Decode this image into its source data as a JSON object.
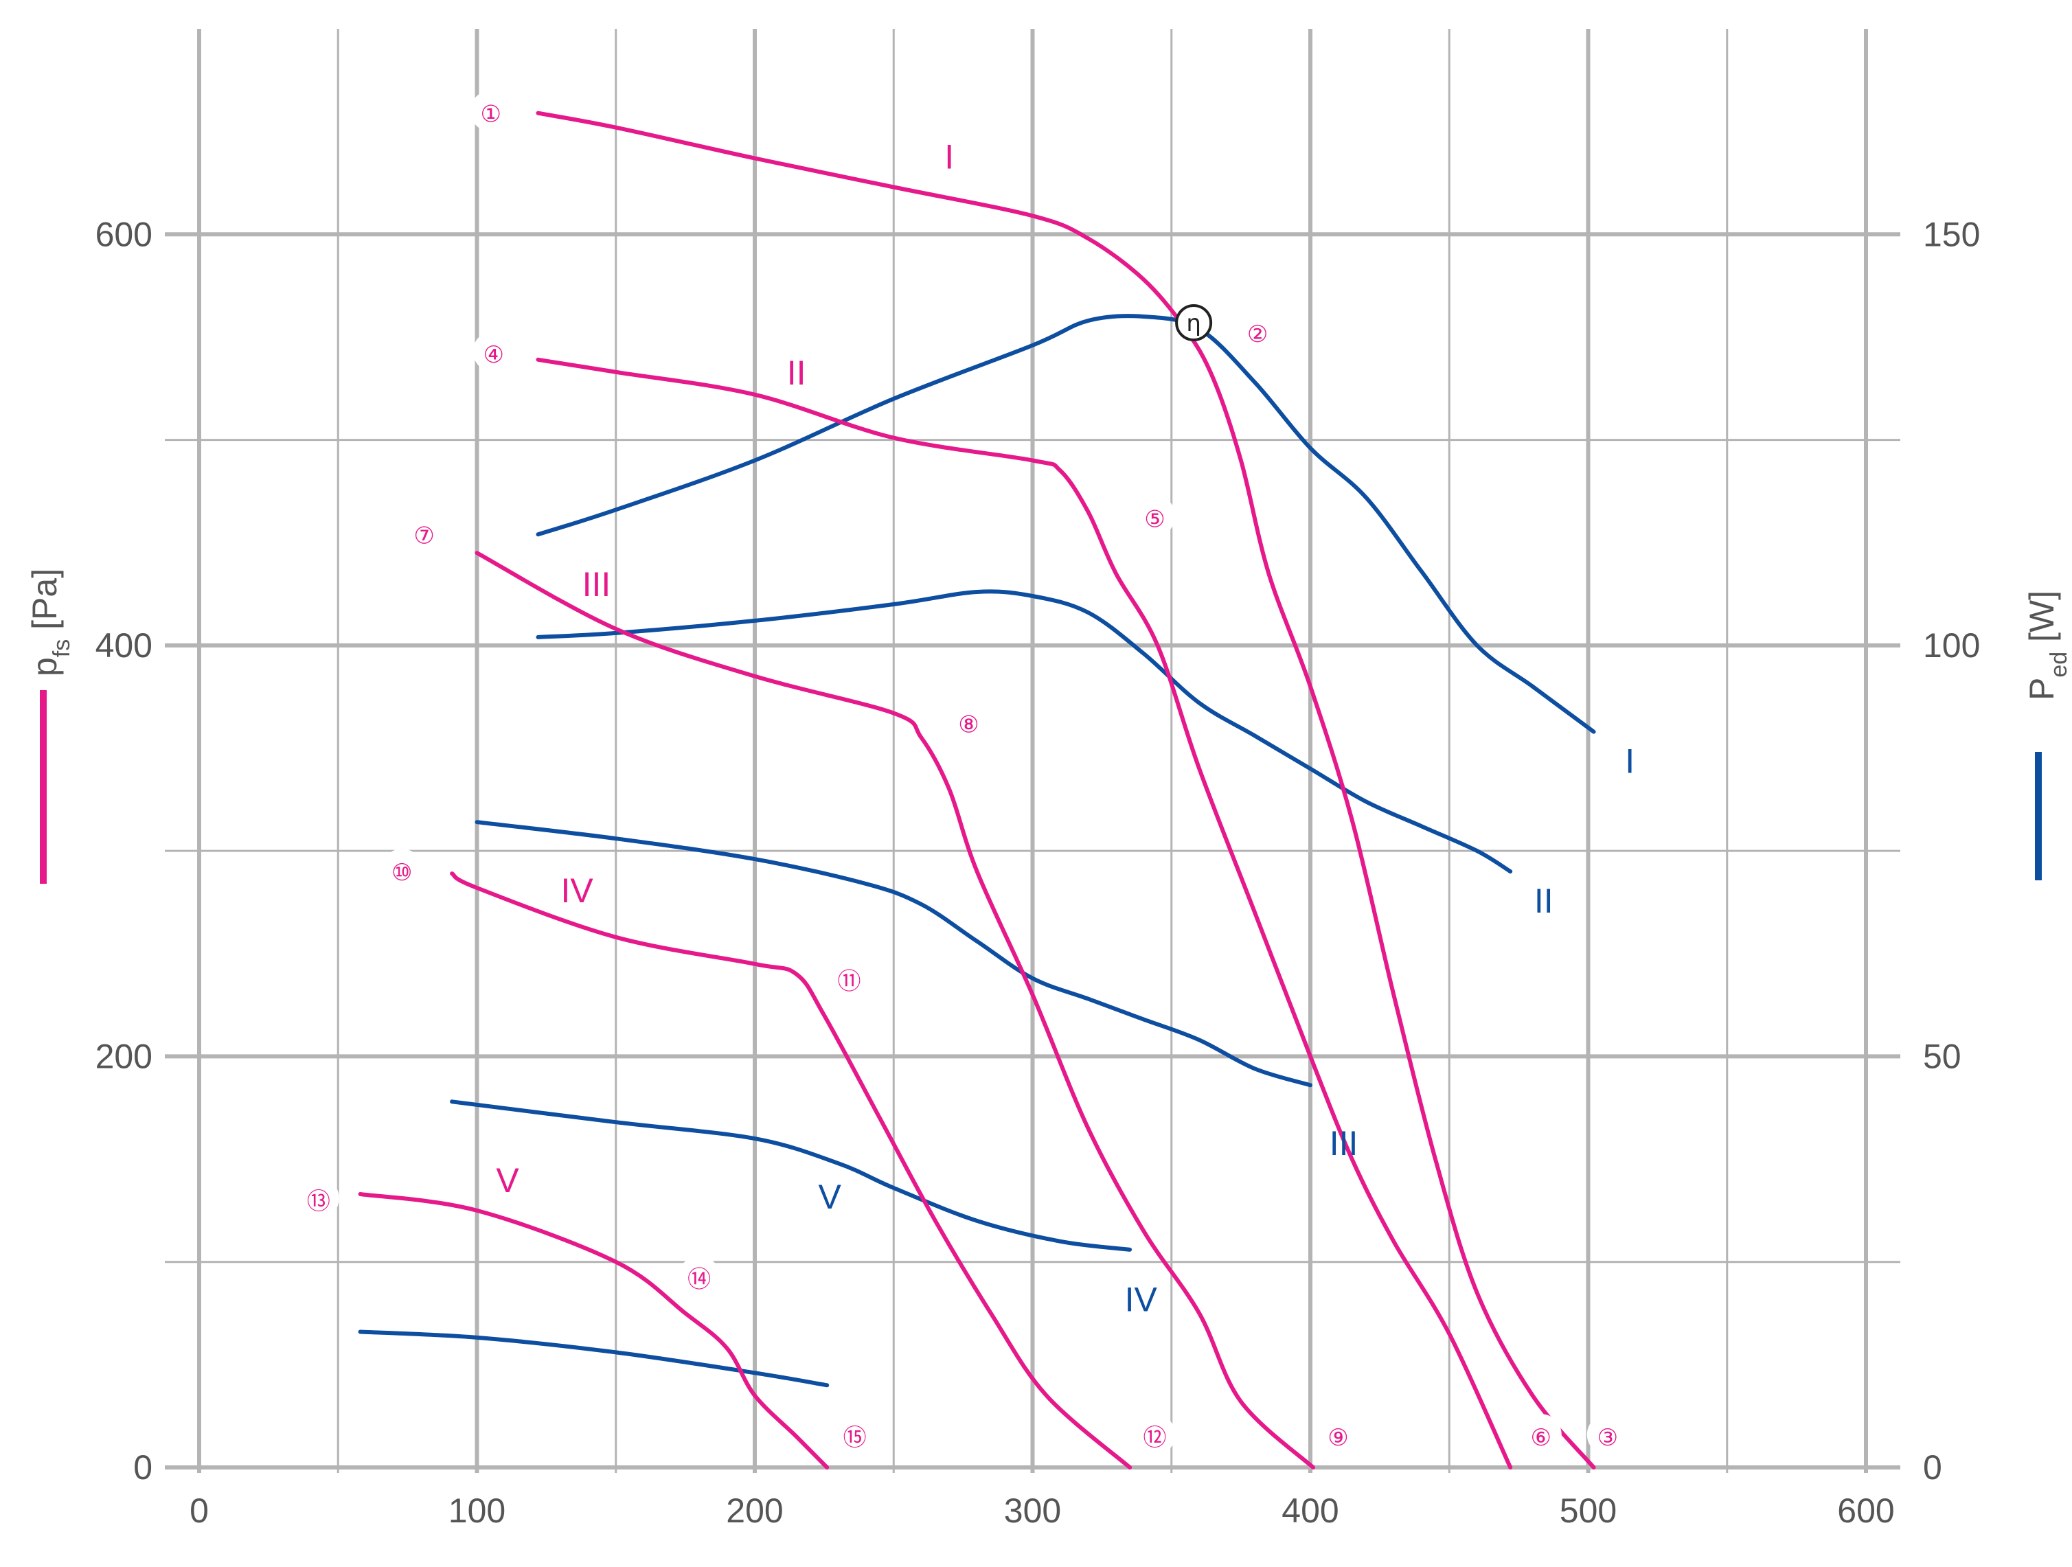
{
  "colors": {
    "pressure": "#e6198a",
    "power": "#0d4ea0",
    "grid": "#b4b4b4",
    "text": "#555555",
    "eta": "#222222"
  },
  "axes": {
    "x_ticks": [
      "0",
      "100",
      "200",
      "300",
      "400",
      "500",
      "600"
    ],
    "y_left_ticks": [
      "0",
      "200",
      "400",
      "600"
    ],
    "y_right_ticks": [
      "0",
      "50",
      "100",
      "150"
    ],
    "y_left_title": "p",
    "y_left_title_sub": "fs",
    "y_left_title_unit": " [Pa]",
    "y_right_title": "P",
    "y_right_title_sub": "ed",
    "y_right_title_unit": " [W]"
  },
  "chart_data": {
    "type": "line",
    "x_range": [
      0,
      600
    ],
    "y_left_range": [
      0,
      700
    ],
    "y_right_range": [
      0,
      175
    ],
    "grid": true,
    "pressure_series": [
      {
        "name": "I",
        "label_at": [
          270,
          638
        ],
        "points": [
          [
            122,
            659
          ],
          [
            150,
            652
          ],
          [
            200,
            637
          ],
          [
            250,
            623
          ],
          [
            300,
            609
          ],
          [
            320,
            598
          ],
          [
            340,
            578
          ],
          [
            355,
            554
          ],
          [
            365,
            530
          ],
          [
            375,
            490
          ],
          [
            385,
            435
          ],
          [
            400,
            380
          ],
          [
            415,
            315
          ],
          [
            430,
            230
          ],
          [
            445,
            150
          ],
          [
            460,
            85
          ],
          [
            480,
            35
          ],
          [
            502,
            0
          ]
        ]
      },
      {
        "name": "II",
        "label_at": [
          215,
          533
        ],
        "points": [
          [
            122,
            539
          ],
          [
            150,
            533
          ],
          [
            200,
            522
          ],
          [
            250,
            501
          ],
          [
            300,
            490
          ],
          [
            310,
            485
          ],
          [
            320,
            465
          ],
          [
            330,
            435
          ],
          [
            345,
            400
          ],
          [
            360,
            340
          ],
          [
            380,
            270
          ],
          [
            400,
            200
          ],
          [
            415,
            150
          ],
          [
            430,
            110
          ],
          [
            450,
            65
          ],
          [
            472,
            0
          ]
        ]
      },
      {
        "name": "III",
        "label_at": [
          143,
          430
        ],
        "points": [
          [
            100,
            445
          ],
          [
            150,
            408
          ],
          [
            200,
            385
          ],
          [
            250,
            367
          ],
          [
            260,
            355
          ],
          [
            270,
            330
          ],
          [
            280,
            290
          ],
          [
            300,
            230
          ],
          [
            320,
            165
          ],
          [
            340,
            115
          ],
          [
            360,
            75
          ],
          [
            375,
            32
          ],
          [
            401,
            0
          ]
        ]
      },
      {
        "name": "IV",
        "label_at": [
          136,
          281
        ],
        "points": [
          [
            91,
            289
          ],
          [
            100,
            282
          ],
          [
            150,
            258
          ],
          [
            200,
            245
          ],
          [
            215,
            240
          ],
          [
            225,
            220
          ],
          [
            245,
            170
          ],
          [
            265,
            120
          ],
          [
            285,
            75
          ],
          [
            305,
            35
          ],
          [
            335,
            0
          ]
        ]
      },
      {
        "name": "V",
        "label_at": [
          111,
          140
        ],
        "points": [
          [
            58,
            133
          ],
          [
            100,
            125
          ],
          [
            150,
            100
          ],
          [
            175,
            75
          ],
          [
            190,
            58
          ],
          [
            200,
            35
          ],
          [
            215,
            15
          ],
          [
            226,
            0
          ]
        ]
      }
    ],
    "power_series": [
      {
        "name": "I",
        "label_at": [
          515,
          86
        ],
        "points": [
          [
            122,
            113.5
          ],
          [
            150,
            116.5
          ],
          [
            200,
            122.5
          ],
          [
            250,
            130
          ],
          [
            300,
            136.5
          ],
          [
            320,
            139.5
          ],
          [
            340,
            140
          ],
          [
            360,
            138.5
          ],
          [
            380,
            132
          ],
          [
            400,
            124
          ],
          [
            420,
            118
          ],
          [
            440,
            109
          ],
          [
            460,
            100
          ],
          [
            480,
            95
          ],
          [
            502,
            89.5
          ]
        ]
      },
      {
        "name": "II",
        "label_at": [
          484,
          69
        ],
        "points": [
          [
            122,
            101
          ],
          [
            150,
            101.5
          ],
          [
            200,
            103
          ],
          [
            250,
            105
          ],
          [
            280,
            106.5
          ],
          [
            300,
            106
          ],
          [
            320,
            104
          ],
          [
            340,
            99
          ],
          [
            360,
            93
          ],
          [
            380,
            89
          ],
          [
            400,
            85
          ],
          [
            420,
            81
          ],
          [
            440,
            78
          ],
          [
            460,
            75
          ],
          [
            472,
            72.5
          ]
        ]
      },
      {
        "name": "III",
        "label_at": [
          412,
          39.5
        ],
        "points": [
          [
            100,
            78.5
          ],
          [
            150,
            76.5
          ],
          [
            200,
            74
          ],
          [
            240,
            71
          ],
          [
            260,
            68.5
          ],
          [
            280,
            64
          ],
          [
            300,
            59.5
          ],
          [
            320,
            57
          ],
          [
            340,
            54.5
          ],
          [
            360,
            52
          ],
          [
            380,
            48.5
          ],
          [
            400,
            46.5
          ]
        ]
      },
      {
        "name": "IV",
        "label_at": [
          339,
          20.5
        ],
        "points": [
          [
            91,
            44.5
          ],
          [
            150,
            42
          ],
          [
            200,
            40
          ],
          [
            230,
            37
          ],
          [
            250,
            34
          ],
          [
            280,
            30
          ],
          [
            310,
            27.5
          ],
          [
            335,
            26.5
          ]
        ]
      },
      {
        "name": "V",
        "label_at": [
          227,
          33
        ],
        "points": [
          [
            58,
            16.5
          ],
          [
            100,
            15.8
          ],
          [
            150,
            14
          ],
          [
            200,
            11.5
          ],
          [
            226,
            10
          ]
        ]
      }
    ],
    "markers": [
      {
        "label": "①",
        "at": [
          105,
          660
        ]
      },
      {
        "label": "②",
        "at": [
          381,
          553
        ]
      },
      {
        "label": "③",
        "at": [
          507,
          16
        ]
      },
      {
        "label": "④",
        "at": [
          106,
          543
        ]
      },
      {
        "label": "⑤",
        "at": [
          344,
          463
        ]
      },
      {
        "label": "⑥",
        "at": [
          483,
          16
        ]
      },
      {
        "label": "⑦",
        "at": [
          81,
          455
        ]
      },
      {
        "label": "⑧",
        "at": [
          277,
          363
        ]
      },
      {
        "label": "⑨",
        "at": [
          410,
          16
        ]
      },
      {
        "label": "⑩",
        "at": [
          73,
          291
        ]
      },
      {
        "label": "⑪",
        "at": [
          234,
          238
        ]
      },
      {
        "label": "⑫",
        "at": [
          344,
          16
        ]
      },
      {
        "label": "⑬",
        "at": [
          43,
          131
        ]
      },
      {
        "label": "⑭",
        "at": [
          180,
          93
        ]
      },
      {
        "label": "⑮",
        "at": [
          236,
          16
        ]
      }
    ],
    "eta": {
      "label": "η",
      "at": [
        358,
        557
      ]
    }
  }
}
